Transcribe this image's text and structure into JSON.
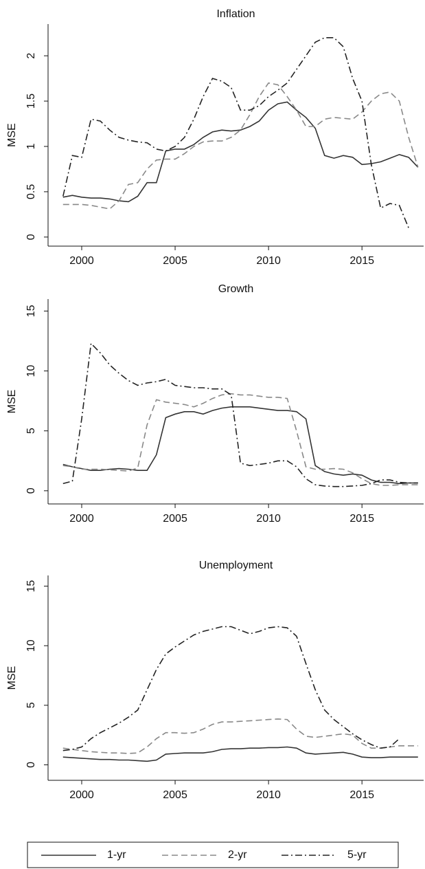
{
  "chart_data": [
    {
      "type": "line",
      "title": "Inflation",
      "y_label": "MSE",
      "x": [
        1999,
        1999.5,
        2000,
        2000.5,
        2001,
        2001.5,
        2002,
        2002.5,
        2003,
        2003.5,
        2004,
        2004.5,
        2005,
        2005.5,
        2006,
        2006.5,
        2007,
        2007.5,
        2008,
        2008.5,
        2009,
        2009.5,
        2010,
        2010.5,
        2011,
        2011.5,
        2012,
        2012.5,
        2013,
        2013.5,
        2014,
        2014.5,
        2015,
        2015.5,
        2016,
        2016.5,
        2017,
        2017.5,
        2018
      ],
      "xlim": [
        1998.2,
        2018.3
      ],
      "xticks": [
        2000,
        2005,
        2010,
        2015
      ],
      "ylim": [
        -0.1,
        2.35
      ],
      "yticks": [
        0,
        0.5,
        1,
        1.5,
        2
      ],
      "series": [
        {
          "name": "1-yr",
          "color": "#333333",
          "style": "solid",
          "values": [
            0.44,
            0.46,
            0.44,
            0.43,
            0.43,
            0.42,
            0.4,
            0.39,
            0.45,
            0.6,
            0.6,
            0.95,
            0.97,
            0.97,
            1.02,
            1.1,
            1.16,
            1.18,
            1.17,
            1.18,
            1.22,
            1.28,
            1.4,
            1.47,
            1.49,
            1.4,
            1.32,
            1.2,
            0.9,
            0.87,
            0.9,
            0.88,
            0.8,
            0.81,
            0.83,
            0.87,
            0.91,
            0.88,
            0.77
          ]
        },
        {
          "name": "2-yr",
          "color": "#888888",
          "style": "dashed",
          "values": [
            0.36,
            0.36,
            0.36,
            0.35,
            0.33,
            0.31,
            0.4,
            0.58,
            0.6,
            0.75,
            0.85,
            0.86,
            0.86,
            0.92,
            1.0,
            1.05,
            1.06,
            1.06,
            1.1,
            1.18,
            1.35,
            1.55,
            1.7,
            1.68,
            1.55,
            1.4,
            1.22,
            1.22,
            1.3,
            1.32,
            1.31,
            1.3,
            1.38,
            1.5,
            1.58,
            1.6,
            1.5,
            1.1,
            0.77
          ]
        },
        {
          "name": "5-yr",
          "color": "#222222",
          "style": "dashdot",
          "values": [
            0.45,
            0.9,
            0.88,
            1.3,
            1.28,
            1.18,
            1.1,
            1.07,
            1.05,
            1.04,
            0.97,
            0.95,
            1.0,
            1.1,
            1.3,
            1.55,
            1.75,
            1.72,
            1.65,
            1.4,
            1.4,
            1.45,
            1.55,
            1.62,
            1.7,
            1.85,
            2.0,
            2.15,
            2.2,
            2.2,
            2.1,
            1.75,
            1.5,
            0.8,
            0.32,
            0.37,
            0.35,
            0.1,
            null
          ]
        }
      ]
    },
    {
      "type": "line",
      "title": "Growth",
      "y_label": "MSE",
      "x": [
        1999,
        1999.5,
        2000,
        2000.5,
        2001,
        2001.5,
        2002,
        2002.5,
        2003,
        2003.5,
        2004,
        2004.5,
        2005,
        2005.5,
        2006,
        2006.5,
        2007,
        2007.5,
        2008,
        2008.5,
        2009,
        2009.5,
        2010,
        2010.5,
        2011,
        2011.5,
        2012,
        2012.5,
        2013,
        2013.5,
        2014,
        2014.5,
        2015,
        2015.5,
        2016,
        2016.5,
        2017,
        2017.5,
        2018
      ],
      "xlim": [
        1998.2,
        2018.3
      ],
      "xticks": [
        2000,
        2005,
        2010,
        2015
      ],
      "ylim": [
        -1.1,
        16
      ],
      "yticks": [
        0,
        5,
        10,
        15
      ],
      "series": [
        {
          "color": "#333333",
          "style": "solid",
          "values": [
            2.2,
            2.0,
            1.85,
            1.7,
            1.7,
            1.8,
            1.85,
            1.8,
            1.7,
            1.7,
            3.0,
            6.1,
            6.4,
            6.6,
            6.6,
            6.4,
            6.7,
            6.9,
            7.0,
            7.0,
            7.0,
            6.9,
            6.8,
            6.7,
            6.7,
            6.6,
            6.0,
            2.1,
            1.6,
            1.4,
            1.3,
            1.4,
            1.3,
            0.9,
            0.7,
            0.7,
            0.6,
            0.65,
            0.65
          ]
        },
        {
          "color": "#888888",
          "style": "dashed",
          "values": [
            2.1,
            2.0,
            1.8,
            1.8,
            1.8,
            1.75,
            1.7,
            1.65,
            1.9,
            5.5,
            7.6,
            7.4,
            7.3,
            7.2,
            7.0,
            7.3,
            7.7,
            8.0,
            8.1,
            8.0,
            8.0,
            7.9,
            7.8,
            7.8,
            7.7,
            5.0,
            2.0,
            1.8,
            1.8,
            1.85,
            1.8,
            1.5,
            1.0,
            0.6,
            0.45,
            0.45,
            0.5,
            0.5,
            0.5
          ]
        },
        {
          "color": "#222222",
          "style": "dashdot",
          "values": [
            0.6,
            0.8,
            6.0,
            12.3,
            11.5,
            10.5,
            9.8,
            9.2,
            8.8,
            9.0,
            9.1,
            9.3,
            8.8,
            8.7,
            8.6,
            8.6,
            8.5,
            8.5,
            8.0,
            2.3,
            2.1,
            2.2,
            2.3,
            2.5,
            2.5,
            2.0,
            1.0,
            0.5,
            0.4,
            0.35,
            0.35,
            0.4,
            0.45,
            0.6,
            0.9,
            0.9,
            0.7,
            0.65,
            0.65
          ]
        }
      ]
    },
    {
      "type": "line",
      "title": "Unemployment",
      "y_label": "MSE",
      "x": [
        1999,
        1999.5,
        2000,
        2000.5,
        2001,
        2001.5,
        2002,
        2002.5,
        2003,
        2003.5,
        2004,
        2004.5,
        2005,
        2005.5,
        2006,
        2006.5,
        2007,
        2007.5,
        2008,
        2008.5,
        2009,
        2009.5,
        2010,
        2010.5,
        2011,
        2011.5,
        2012,
        2012.5,
        2013,
        2013.5,
        2014,
        2014.5,
        2015,
        2015.5,
        2016,
        2016.5,
        2017,
        2017.5,
        2018
      ],
      "xlim": [
        1998.2,
        2018.3
      ],
      "xticks": [
        2000,
        2005,
        2010,
        2015
      ],
      "ylim": [
        -1.3,
        15.9
      ],
      "yticks": [
        0,
        5,
        10,
        15
      ],
      "series": [
        {
          "color": "#333333",
          "style": "solid",
          "values": [
            0.65,
            0.6,
            0.55,
            0.5,
            0.45,
            0.45,
            0.4,
            0.4,
            0.35,
            0.3,
            0.4,
            0.9,
            0.95,
            1.0,
            1.0,
            1.0,
            1.1,
            1.3,
            1.35,
            1.35,
            1.4,
            1.4,
            1.45,
            1.45,
            1.5,
            1.4,
            1.0,
            0.9,
            0.95,
            1.0,
            1.05,
            0.9,
            0.65,
            0.6,
            0.6,
            0.65,
            0.65,
            0.65,
            0.65
          ]
        },
        {
          "color": "#888888",
          "style": "dashed",
          "values": [
            1.4,
            1.3,
            1.2,
            1.1,
            1.05,
            1.0,
            1.0,
            0.95,
            1.0,
            1.5,
            2.2,
            2.7,
            2.7,
            2.65,
            2.7,
            3.0,
            3.4,
            3.6,
            3.6,
            3.65,
            3.7,
            3.75,
            3.8,
            3.85,
            3.8,
            3.0,
            2.4,
            2.3,
            2.4,
            2.5,
            2.6,
            2.5,
            1.8,
            1.4,
            1.4,
            1.5,
            1.6,
            1.6,
            1.6
          ]
        },
        {
          "color": "#222222",
          "style": "dashdot",
          "values": [
            1.2,
            1.3,
            1.5,
            2.2,
            2.7,
            3.1,
            3.5,
            4.0,
            4.6,
            6.3,
            8.0,
            9.3,
            9.9,
            10.4,
            10.9,
            11.2,
            11.4,
            11.6,
            11.6,
            11.3,
            11.0,
            11.2,
            11.5,
            11.6,
            11.5,
            10.8,
            8.5,
            6.3,
            4.6,
            3.8,
            3.2,
            2.6,
            2.1,
            1.7,
            1.4,
            1.5,
            2.2,
            null,
            null
          ]
        }
      ]
    }
  ]
}
